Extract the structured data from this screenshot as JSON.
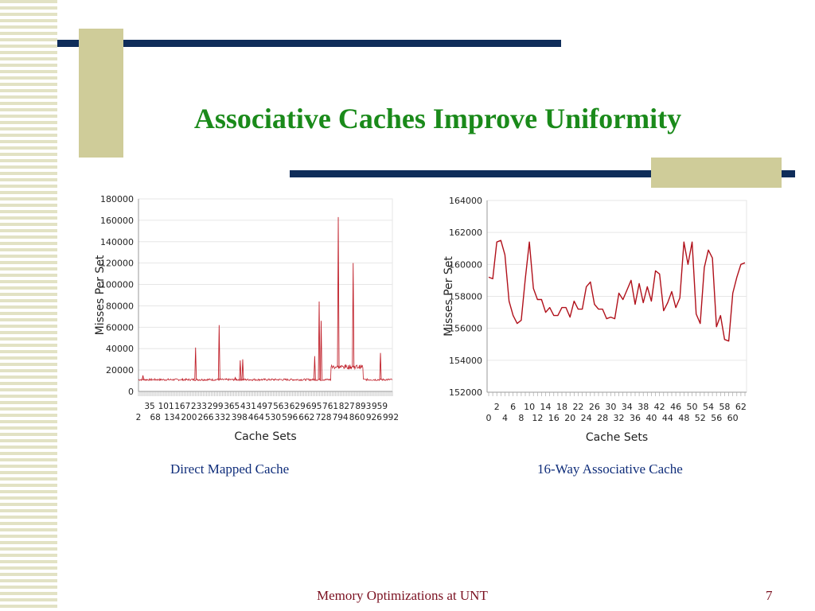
{
  "slide": {
    "title": "Associative Caches Improve Uniformity",
    "footer": "Memory Optimizations at UNT",
    "page_number": "7",
    "accent_color": "#0f2d5a",
    "tan_color": "#cfcc99",
    "title_color": "#1a8a1a"
  },
  "chart_data": [
    {
      "type": "line",
      "caption": "Direct Mapped Cache",
      "xlabel": "Cache Sets",
      "ylabel": "Misses Per Set",
      "ylim": [
        0,
        180000
      ],
      "yticks": [
        "0",
        "20000",
        "40000",
        "60000",
        "80000",
        "100000",
        "120000",
        "140000",
        "160000",
        "180000"
      ],
      "xtick_labels_top": [
        "35",
        "101",
        "167",
        "233",
        "299",
        "365",
        "431",
        "497",
        "563",
        "629",
        "695",
        "761",
        "827",
        "893",
        "959"
      ],
      "xtick_labels_bottom": [
        "2",
        "68",
        "134",
        "200",
        "266",
        "332",
        "398",
        "464",
        "530",
        "596",
        "662",
        "728",
        "794",
        "860",
        "926",
        "992"
      ],
      "x_range": [
        0,
        1023
      ],
      "baseline": 11000,
      "grid": true,
      "line_color": "#c0202a",
      "spikes": [
        {
          "x": 18,
          "y": 15000
        },
        {
          "x": 230,
          "y": 41000
        },
        {
          "x": 325,
          "y": 62000
        },
        {
          "x": 390,
          "y": 13000
        },
        {
          "x": 410,
          "y": 29000
        },
        {
          "x": 420,
          "y": 30000
        },
        {
          "x": 710,
          "y": 33000
        },
        {
          "x": 728,
          "y": 84000
        },
        {
          "x": 736,
          "y": 66000
        },
        {
          "x": 805,
          "y": 163000
        },
        {
          "x": 865,
          "y": 120000
        },
        {
          "x": 975,
          "y": 36000
        }
      ],
      "plateau": {
        "x_start": 775,
        "x_end": 905,
        "y": 23000
      }
    },
    {
      "type": "line",
      "caption": "16-Way Associative Cache",
      "xlabel": "Cache Sets",
      "ylabel": "Misses Per Set",
      "ylim": [
        152000,
        164000
      ],
      "yticks": [
        "152000",
        "154000",
        "156000",
        "158000",
        "160000",
        "162000",
        "164000"
      ],
      "xtick_labels_top": [
        "2",
        "6",
        "10",
        "14",
        "18",
        "22",
        "26",
        "30",
        "34",
        "38",
        "42",
        "46",
        "50",
        "54",
        "58",
        "62"
      ],
      "xtick_labels_bottom": [
        "0",
        "4",
        "8",
        "12",
        "16",
        "20",
        "24",
        "28",
        "32",
        "36",
        "40",
        "44",
        "48",
        "52",
        "56",
        "60"
      ],
      "grid": true,
      "line_color": "#b0101a",
      "x": [
        0,
        1,
        2,
        3,
        4,
        5,
        6,
        7,
        8,
        9,
        10,
        11,
        12,
        13,
        14,
        15,
        16,
        17,
        18,
        19,
        20,
        21,
        22,
        23,
        24,
        25,
        26,
        27,
        28,
        29,
        30,
        31,
        32,
        33,
        34,
        35,
        36,
        37,
        38,
        39,
        40,
        41,
        42,
        43,
        44,
        45,
        46,
        47,
        48,
        49,
        50,
        51,
        52,
        53,
        54,
        55,
        56,
        57,
        58,
        59,
        60,
        61,
        62,
        63
      ],
      "y": [
        159200,
        159100,
        161400,
        161500,
        160600,
        157700,
        156800,
        156300,
        156500,
        159100,
        161400,
        158500,
        157800,
        157800,
        157000,
        157300,
        156800,
        156800,
        157300,
        157300,
        156700,
        157700,
        157200,
        157200,
        158600,
        158900,
        157500,
        157200,
        157200,
        156600,
        156700,
        156600,
        158200,
        157800,
        158400,
        159000,
        157500,
        158800,
        157600,
        158600,
        157700,
        159600,
        159400,
        157100,
        157600,
        158300,
        157300,
        157900,
        161400,
        160000,
        161400,
        156900,
        156300,
        159800,
        160900,
        160400,
        156100,
        156800,
        155300,
        155200,
        158200,
        159200,
        160000,
        160100
      ]
    }
  ]
}
